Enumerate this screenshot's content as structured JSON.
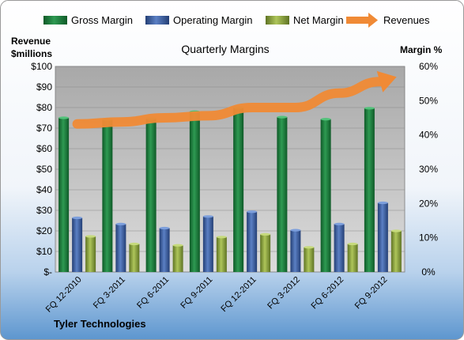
{
  "chart_data": {
    "type": "bar",
    "title": "Quarterly Margins",
    "footer": "Tyler Technologies",
    "left_axis": {
      "label_line1": "Revenue",
      "label_line2": "$millions",
      "ylim": [
        0,
        100
      ],
      "ticks": [
        "$-",
        "$10",
        "$20",
        "$30",
        "$40",
        "$50",
        "$60",
        "$70",
        "$80",
        "$90",
        "$100"
      ]
    },
    "right_axis": {
      "label": "Margin %",
      "ylim": [
        0,
        60
      ],
      "ticks": [
        "0%",
        "10%",
        "20%",
        "30%",
        "40%",
        "50%",
        "60%"
      ]
    },
    "categories": [
      "FQ 12-2010",
      "FQ 3-2011",
      "FQ 6-2011",
      "FQ 9-2011",
      "FQ 12-2011",
      "FQ 3-2012",
      "FQ 6-2012",
      "FQ 9-2012"
    ],
    "series": [
      {
        "name": "Gross Margin",
        "axis": "right",
        "unit": "%",
        "color": "#1e7d3e",
        "values": [
          45,
          44.5,
          44.8,
          46.8,
          48,
          45.2,
          44.6,
          47.8
        ]
      },
      {
        "name": "Operating Margin",
        "axis": "right",
        "unit": "%",
        "color": "#3f63a6",
        "values": [
          15.8,
          14,
          12.8,
          16.2,
          17.6,
          12.2,
          14,
          20.2
        ]
      },
      {
        "name": "Net Margin",
        "axis": "right",
        "unit": "%",
        "color": "#8ea83a",
        "values": [
          10.4,
          8.2,
          7.8,
          10.2,
          11,
          7.2,
          8.2,
          12
        ]
      },
      {
        "name": "Revenues",
        "axis": "left",
        "unit": "$M",
        "type": "line",
        "color": "#f08a35",
        "values": [
          72,
          73,
          75,
          76,
          80,
          80,
          87,
          93
        ]
      }
    ],
    "grid": true,
    "legend_position": "top"
  }
}
